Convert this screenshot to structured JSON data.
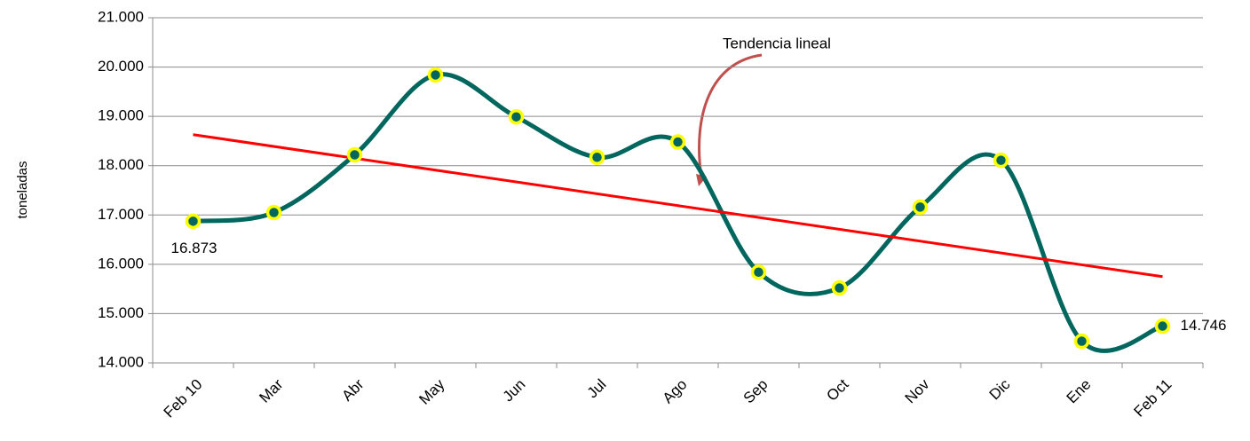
{
  "chart_data": {
    "type": "line",
    "y_label": "toneladas",
    "annotation": "Tendencia lineal",
    "categories": [
      "Feb 10",
      "Mar",
      "Abr",
      "May",
      "Jun",
      "Jul",
      "Ago",
      "Sep",
      "Oct",
      "Nov",
      "Dic",
      "Ene",
      "Feb 11"
    ],
    "series": [
      {
        "color": "#00665e",
        "marker_edge": "#ffff00",
        "values": [
          16873,
          17050,
          18220,
          19840,
          18990,
          18170,
          18480,
          15840,
          15520,
          17160,
          18110,
          14440,
          14746
        ],
        "value_labels": [
          "16.873",
          null,
          null,
          null,
          null,
          null,
          null,
          null,
          null,
          null,
          null,
          null,
          "14.746"
        ]
      }
    ],
    "trend": {
      "color": "#ff0000",
      "values": [
        18630,
        15750
      ]
    },
    "ylim": [
      14000,
      21000
    ],
    "yticks": [
      {
        "value": 14000,
        "label": "14.000"
      },
      {
        "value": 15000,
        "label": "15.000"
      },
      {
        "value": 16000,
        "label": "16.000"
      },
      {
        "value": 17000,
        "label": "17.000"
      },
      {
        "value": 18000,
        "label": "18.000"
      },
      {
        "value": 19000,
        "label": "19.000"
      },
      {
        "value": 20000,
        "label": "20.000"
      },
      {
        "value": 21000,
        "label": "21.000"
      }
    ],
    "grid": true
  }
}
